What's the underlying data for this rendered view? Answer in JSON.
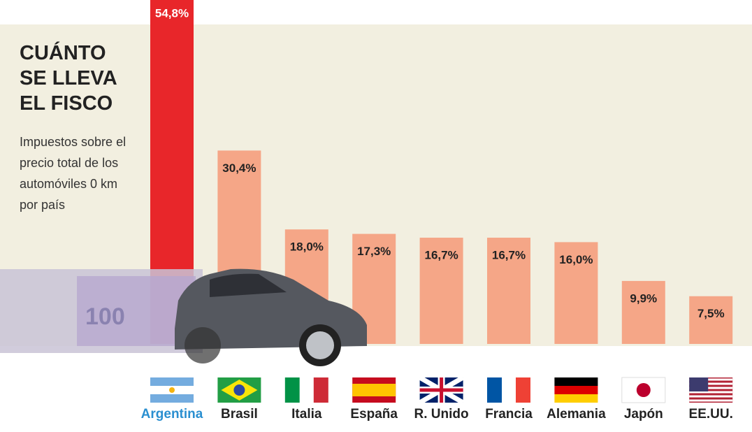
{
  "chart_data": {
    "type": "bar",
    "title": "CUÁNTO SE LLEVA EL FISCO",
    "subtitle": "Impuestos sobre el precio total de los automóviles 0 km por país",
    "categories": [
      "Argentina",
      "Brasil",
      "Italia",
      "España",
      "R. Unido",
      "Francia",
      "Alemania",
      "Japón",
      "EE.UU."
    ],
    "values": [
      54.8,
      30.4,
      18.0,
      17.3,
      16.7,
      16.7,
      16.0,
      9.9,
      7.5
    ],
    "value_labels": [
      "54,8%",
      "30,4%",
      "18,0%",
      "17,3%",
      "16,7%",
      "16,7%",
      "16,0%",
      "9,9%",
      "7,5%"
    ],
    "colors": [
      "#e8262a",
      "#f5a687",
      "#f5a687",
      "#f5a687",
      "#f5a687",
      "#f5a687",
      "#f5a687",
      "#f5a687",
      "#f5a687"
    ],
    "label_colors": [
      "#2a8fd0",
      "#222222",
      "#222222",
      "#222222",
      "#222222",
      "#222222",
      "#222222",
      "#222222",
      "#222222"
    ]
  }
}
